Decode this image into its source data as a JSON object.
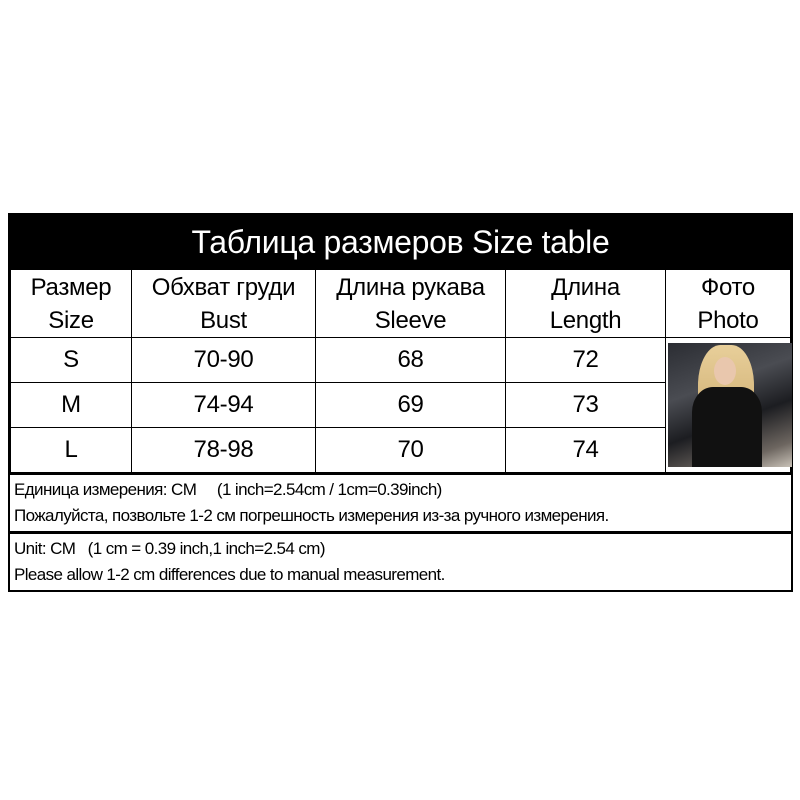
{
  "title": "Таблица размеров  Size table",
  "headers": [
    [
      "Размер",
      "Size"
    ],
    [
      "Обхват груди",
      "Bust"
    ],
    [
      "Длина рукава",
      "Sleeve"
    ],
    [
      "Длина",
      "Length"
    ],
    [
      "Фото",
      "Photo"
    ]
  ],
  "rows": [
    [
      "S",
      "70-90",
      "68",
      "72"
    ],
    [
      "M",
      "74-94",
      "69",
      "73"
    ],
    [
      "L",
      "78-98",
      "70",
      "74"
    ]
  ],
  "photo": {
    "icon": "model-photo"
  },
  "notes_ru": [
    "Единица измерения: CM     (1 inch=2.54cm / 1cm=0.39inch)",
    "Пожалуйста, позвольте 1-2 см погрешность измерения из-за ручного измерения."
  ],
  "notes_en": [
    "Unit: CM   (1 cm = 0.39 inch,1 inch=2.54 cm)",
    "Please allow 1-2 cm differences due to manual measurement."
  ]
}
